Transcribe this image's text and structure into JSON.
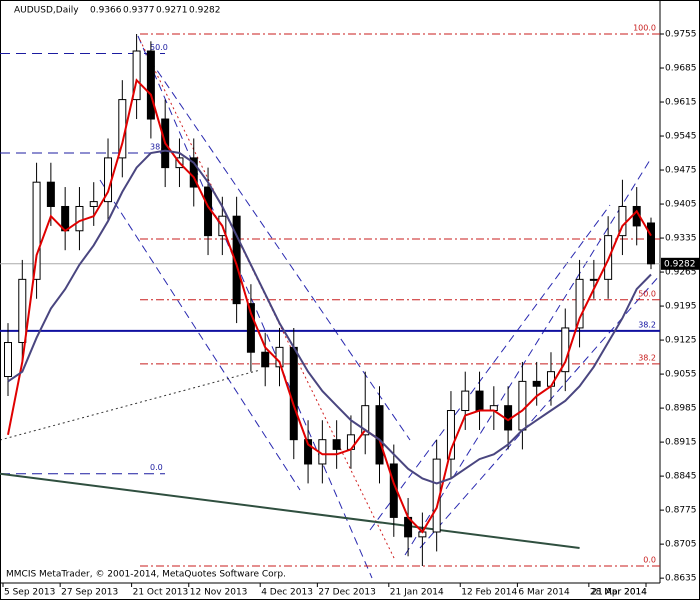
{
  "chart_data": {
    "type": "candlestick",
    "title": "AUDUSD,Daily",
    "footer": "MMCIS MetaTrader, © 2001-2014, MetaQuotes Software Corp.",
    "categories": [
      "5 Sep 2013",
      null,
      null,
      null,
      "27 Sep 2013",
      null,
      null,
      null,
      null,
      "21 Oct 2013",
      null,
      null,
      null,
      "12 Nov 2013",
      null,
      null,
      null,
      null,
      "4 Dec 2013",
      null,
      null,
      null,
      "27 Dec 2013",
      null,
      null,
      null,
      null,
      "21 Jan 2014",
      null,
      null,
      null,
      null,
      "12 Feb 2014",
      null,
      null,
      null,
      "6 Mar 2014",
      null,
      null,
      null,
      null,
      "28 Mar 2014",
      null,
      null,
      null,
      "21 Apr 2014"
    ],
    "open": [
      0.905,
      0.912,
      0.925,
      0.945,
      0.94,
      0.935,
      0.94,
      0.941,
      0.95,
      0.962,
      0.972,
      0.958,
      0.948,
      0.95,
      0.944,
      0.934,
      0.938,
      0.92,
      0.91,
      0.907,
      0.911,
      0.892,
      0.887,
      0.892,
      0.89,
      0.893,
      0.899,
      0.887,
      0.876,
      0.872,
      0.873,
      0.888,
      0.898,
      0.902,
      0.898,
      0.899,
      0.894,
      0.904,
      0.903,
      0.906,
      0.915,
      0.925,
      0.925,
      0.934,
      0.94,
      0.9366
    ],
    "high": [
      0.916,
      0.929,
      0.949,
      0.949,
      0.944,
      0.944,
      0.945,
      0.954,
      0.966,
      0.9755,
      0.974,
      0.962,
      0.954,
      0.954,
      0.948,
      0.942,
      0.942,
      0.924,
      0.914,
      0.915,
      0.915,
      0.896,
      0.896,
      0.896,
      0.897,
      0.906,
      0.903,
      0.891,
      0.88,
      0.877,
      0.892,
      0.902,
      0.906,
      0.906,
      0.903,
      0.903,
      0.908,
      0.908,
      0.91,
      0.919,
      0.929,
      0.929,
      0.938,
      0.9455,
      0.944,
      0.9377
    ],
    "low": [
      0.901,
      0.908,
      0.921,
      0.936,
      0.931,
      0.931,
      0.936,
      0.937,
      0.946,
      0.958,
      0.954,
      0.944,
      0.944,
      0.94,
      0.93,
      0.93,
      0.916,
      0.906,
      0.903,
      0.903,
      0.888,
      0.883,
      0.883,
      0.886,
      0.886,
      0.889,
      0.883,
      0.872,
      0.868,
      0.866,
      0.869,
      0.884,
      0.894,
      0.894,
      0.894,
      0.89,
      0.89,
      0.899,
      0.899,
      0.902,
      0.911,
      0.921,
      0.921,
      0.93,
      0.932,
      0.9271
    ],
    "close": [
      0.912,
      0.925,
      0.945,
      0.94,
      0.935,
      0.94,
      0.941,
      0.95,
      0.962,
      0.972,
      0.958,
      0.948,
      0.95,
      0.944,
      0.934,
      0.938,
      0.92,
      0.91,
      0.907,
      0.911,
      0.892,
      0.887,
      0.892,
      0.89,
      0.893,
      0.899,
      0.887,
      0.876,
      0.872,
      0.873,
      0.888,
      0.898,
      0.902,
      0.898,
      0.899,
      0.894,
      0.904,
      0.903,
      0.906,
      0.915,
      0.925,
      0.925,
      0.934,
      0.94,
      0.936,
      0.9282
    ],
    "overlays": [
      {
        "color": "#e00000",
        "values": [
          0.893,
          0.908,
          0.93,
          0.938,
          0.935,
          0.937,
          0.938,
          0.943,
          0.953,
          0.966,
          0.963,
          0.953,
          0.949,
          0.946,
          0.94,
          0.936,
          0.928,
          0.918,
          0.911,
          0.908,
          0.899,
          0.891,
          0.889,
          0.889,
          0.89,
          0.894,
          0.892,
          0.883,
          0.876,
          0.873,
          0.878,
          0.89,
          0.897,
          0.898,
          0.898,
          0.896,
          0.898,
          0.901,
          0.903,
          0.908,
          0.917,
          0.923,
          0.929,
          0.936,
          0.939,
          0.934
        ]
      },
      {
        "color": "#4a4680",
        "values": [
          0.904,
          0.906,
          0.913,
          0.919,
          0.923,
          0.928,
          0.932,
          0.937,
          0.943,
          0.948,
          0.951,
          0.9515,
          0.951,
          0.949,
          0.945,
          0.94,
          0.934,
          0.928,
          0.922,
          0.916,
          0.911,
          0.906,
          0.902,
          0.899,
          0.896,
          0.894,
          0.892,
          0.889,
          0.886,
          0.884,
          0.883,
          0.884,
          0.886,
          0.888,
          0.889,
          0.891,
          0.894,
          0.896,
          0.898,
          0.9,
          0.903,
          0.907,
          0.912,
          0.917,
          0.923,
          0.926
        ]
      }
    ],
    "levels": [
      {
        "label": "100.0",
        "value": 0.9755,
        "color": "#c81e1e",
        "style": "dashdot",
        "side": "right"
      },
      {
        "label": null,
        "value": 0.9333,
        "color": "#c81e1e",
        "style": "dashdot",
        "side": "right"
      },
      {
        "label": "50.0",
        "value": 0.9208,
        "color": "#c81e1e",
        "style": "dashdot",
        "side": "right"
      },
      {
        "label": "38.2",
        "value": 0.9076,
        "color": "#c81e1e",
        "style": "dashdot",
        "side": "right"
      },
      {
        "label": "0.0",
        "value": 0.866,
        "color": "#c81e1e",
        "style": "dashdot",
        "side": "right"
      },
      {
        "label": "38.2",
        "value": 0.9144,
        "color": "#1010a0",
        "style": "solid",
        "side": "full"
      },
      {
        "label": "50.0",
        "value": 0.9715,
        "color": "#1c1ca0",
        "style": "dashed",
        "side": "left"
      },
      {
        "label": "38.2",
        "value": 0.951,
        "color": "#1c1ca0",
        "style": "dashed",
        "side": "left"
      },
      {
        "label": "0.0",
        "value": 0.885,
        "color": "#1c1ca0",
        "style": "dashed",
        "side": "left"
      }
    ],
    "trendline": {
      "color": "#2f4f3f",
      "x": [
        0,
        40
      ],
      "y": [
        0.885,
        0.8697
      ]
    },
    "ylim": [
      0.8625,
      0.9825
    ],
    "yticks": [
      0.9755,
      0.9685,
      0.9615,
      0.9545,
      0.9475,
      0.9405,
      0.9335,
      0.9265,
      0.9195,
      0.9125,
      0.9055,
      0.8985,
      0.8915,
      0.8845,
      0.8775,
      0.8705,
      0.8635
    ]
  }
}
